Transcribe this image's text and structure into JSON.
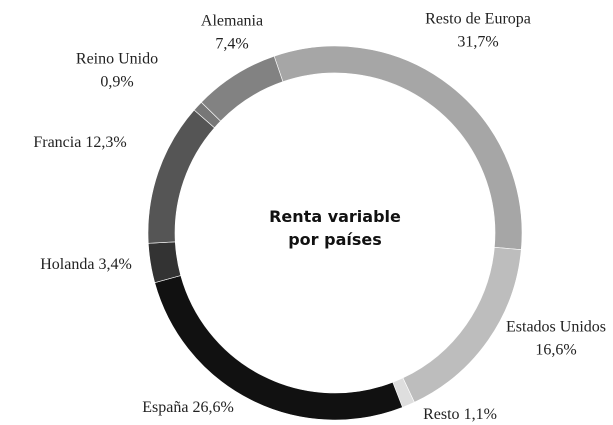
{
  "chart_data": {
    "type": "donut",
    "title": "Renta variable por países",
    "categories": [
      "Resto de Europa",
      "Estados Unidos",
      "Resto",
      "España",
      "Holanda",
      "Francia",
      "Reino Unido",
      "Alemania"
    ],
    "values": [
      31.7,
      16.6,
      1.1,
      26.6,
      3.4,
      12.3,
      0.9,
      7.4
    ],
    "value_labels": [
      "31,7%",
      "16,6%",
      "1,1%",
      "26,6%",
      "3,4%",
      "12,3%",
      "0,9%",
      "7,4%"
    ],
    "colors": [
      "#a6a6a6",
      "#bdbdbd",
      "#dedede",
      "#111111",
      "#333333",
      "#555555",
      "#777777",
      "#828282"
    ]
  }
}
